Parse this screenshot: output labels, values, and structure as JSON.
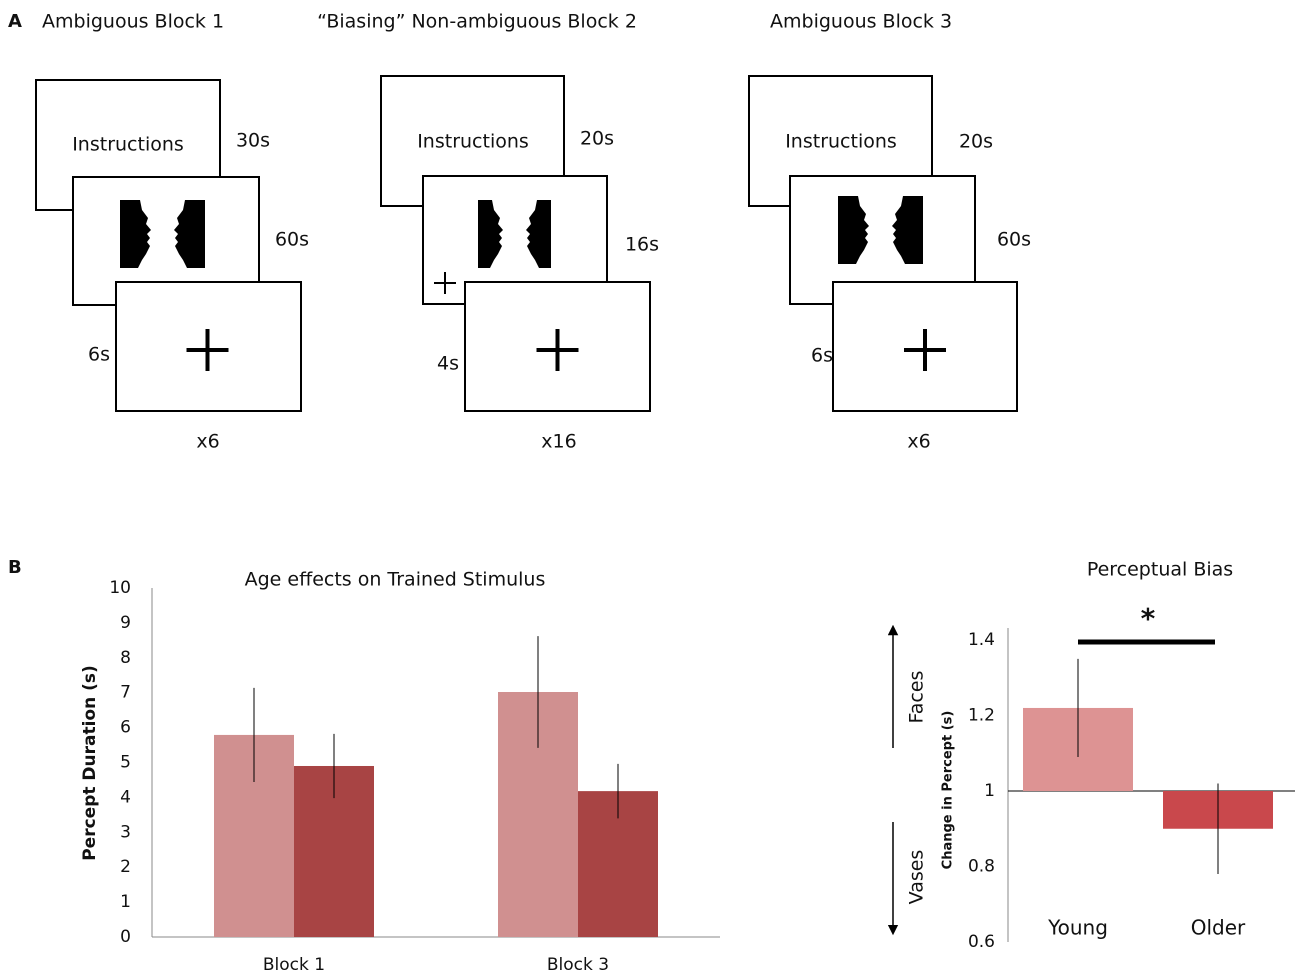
{
  "panel_a": {
    "label": "A",
    "blocks": [
      {
        "title": "Ambiguous Block 1",
        "instructions": "Instructions",
        "instruction_time": "30s",
        "stimulus_time": "60s",
        "fixation_time": "6s",
        "repeats": "x6",
        "stimulus": "vase"
      },
      {
        "title": "“Biasing” Non-ambiguous Block 2",
        "instructions": "Instructions",
        "instruction_time": "20s",
        "stimulus_time": "16s",
        "fixation_time": "4s",
        "repeats": "x16",
        "stimulus": "faces"
      },
      {
        "title": "Ambiguous Block 3",
        "instructions": "Instructions",
        "instruction_time": "20s",
        "stimulus_time": "60s",
        "fixation_time": "6s",
        "repeats": "x6",
        "stimulus": "vase"
      }
    ]
  },
  "panel_b": {
    "label": "B"
  },
  "chart_data": [
    {
      "type": "bar",
      "title": "Age effects on Trained Stimulus",
      "y_label": "Percept Duration (s)",
      "categories": [
        "Block 1",
        "Block 3"
      ],
      "series": [
        {
          "color": "#d09090",
          "values": [
            5.79,
            7.02
          ],
          "errors": [
            1.35,
            1.6
          ]
        },
        {
          "color": "#a84444",
          "values": [
            4.9,
            4.18
          ],
          "errors": [
            0.92,
            0.78
          ]
        }
      ],
      "ylim": [
        0,
        10
      ],
      "yticks": [
        0,
        1,
        2,
        3,
        4,
        5,
        6,
        7,
        8,
        9,
        10
      ],
      "grid": false
    },
    {
      "type": "bar",
      "title": "Perceptual Bias",
      "y_label": "Change in Percept (s)",
      "categories": [
        "Young",
        "Older"
      ],
      "series": [
        {
          "colors": [
            "#dd9393",
            "#c9484c"
          ],
          "values": [
            1.22,
            0.9
          ],
          "errors": [
            0.13,
            0.12
          ]
        }
      ],
      "baseline": 1,
      "ylim": [
        0.6,
        1.4
      ],
      "yticks": [
        0.6,
        0.8,
        1,
        1.2,
        1.4
      ],
      "grid": false,
      "annotations": [
        {
          "text": "*"
        },
        {
          "text": "Faces"
        },
        {
          "text": "Vases"
        }
      ]
    }
  ]
}
